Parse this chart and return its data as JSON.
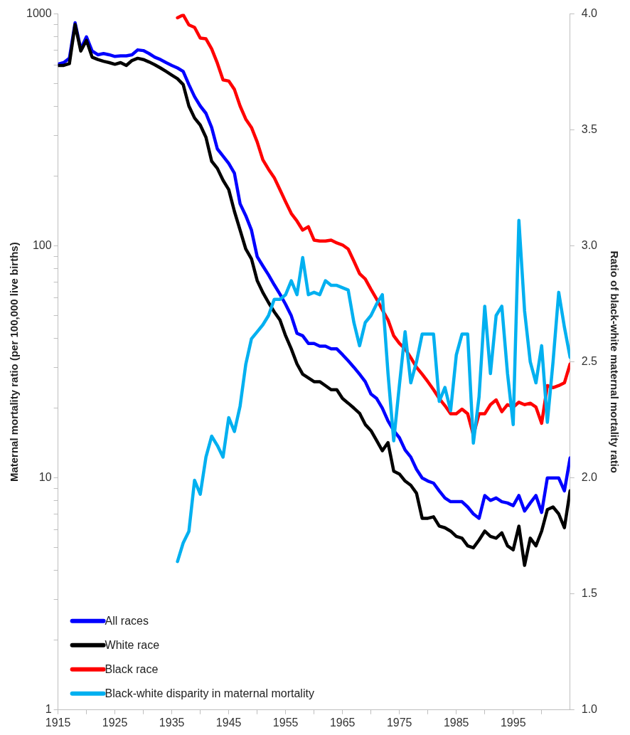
{
  "chart_data": {
    "type": "line",
    "ylabel": "Maternal mortality ratio (per 100,000 live births)",
    "y2label": "Ratio of black-white maternal mortality ratio",
    "x": [
      1915,
      1916,
      1917,
      1918,
      1919,
      1920,
      1921,
      1922,
      1923,
      1924,
      1925,
      1926,
      1927,
      1928,
      1929,
      1930,
      1931,
      1932,
      1933,
      1934,
      1935,
      1936,
      1937,
      1938,
      1939,
      1940,
      1941,
      1942,
      1943,
      1944,
      1945,
      1946,
      1947,
      1948,
      1949,
      1950,
      1951,
      1952,
      1953,
      1954,
      1955,
      1956,
      1957,
      1958,
      1959,
      1960,
      1961,
      1962,
      1963,
      1964,
      1965,
      1966,
      1967,
      1968,
      1969,
      1970,
      1971,
      1972,
      1973,
      1974,
      1975,
      1976,
      1977,
      1978,
      1979,
      1980,
      1981,
      1982,
      1983,
      1984,
      1985,
      1986,
      1987,
      1988,
      1989,
      1990,
      1991,
      1992,
      1993,
      1994,
      1995,
      1996,
      1997,
      1998,
      1999,
      2000,
      2001,
      2002,
      2003,
      2004,
      2005
    ],
    "xlim": [
      1915,
      2005
    ],
    "xticks": [
      1915,
      {
        "value": 1920,
        "label": null
      },
      1925,
      {
        "value": 1930,
        "label": null
      },
      1935,
      {
        "value": 1940,
        "label": null
      },
      1945,
      {
        "value": 1950,
        "label": null
      },
      1955,
      {
        "value": 1960,
        "label": null
      },
      1965,
      {
        "value": 1970,
        "label": null
      },
      1975,
      {
        "value": 1980,
        "label": null
      },
      1985,
      {
        "value": 1990,
        "label": null
      },
      1995,
      {
        "value": 2000,
        "label": null
      }
    ],
    "log": "y",
    "ylim": [
      1,
      1000
    ],
    "yticks": [
      1,
      {
        "value": 2,
        "label": null
      },
      {
        "value": 3,
        "label": null
      },
      {
        "value": 4,
        "label": null
      },
      {
        "value": 5,
        "label": null
      },
      {
        "value": 6,
        "label": null
      },
      {
        "value": 7,
        "label": null
      },
      {
        "value": 8,
        "label": null
      },
      {
        "value": 9,
        "label": null
      },
      10,
      {
        "value": 20,
        "label": null
      },
      {
        "value": 30,
        "label": null
      },
      {
        "value": 40,
        "label": null
      },
      {
        "value": 50,
        "label": null
      },
      {
        "value": 60,
        "label": null
      },
      {
        "value": 70,
        "label": null
      },
      {
        "value": 80,
        "label": null
      },
      {
        "value": 90,
        "label": null
      },
      100,
      {
        "value": 200,
        "label": null
      },
      {
        "value": 300,
        "label": null
      },
      {
        "value": 400,
        "label": null
      },
      {
        "value": 500,
        "label": null
      },
      {
        "value": 600,
        "label": null
      },
      {
        "value": 700,
        "label": null
      },
      {
        "value": 800,
        "label": null
      },
      {
        "value": 900,
        "label": null
      },
      1000
    ],
    "y2lim": [
      1,
      4
    ],
    "y2ticks": [
      {
        "value": 1,
        "label": "1.0"
      },
      1.5,
      {
        "value": 2,
        "label": "2.0"
      },
      2.5,
      {
        "value": 3,
        "label": "3.0"
      },
      3.5,
      {
        "value": 4,
        "label": "4.0"
      }
    ],
    "grid": false,
    "legend": "bottom left",
    "marker": "none",
    "line_style": "solid",
    "series": [
      {
        "name": "All races",
        "color": "#0000ff",
        "values": [
          607,
          617,
          644,
          916,
          706,
          797,
          692,
          667,
          675,
          667,
          656,
          660,
          660,
          667,
          700,
          695,
          675,
          651,
          636,
          617,
          600,
          585,
          565,
          496,
          440,
          401,
          373,
          324,
          262,
          244,
          227,
          206,
          152,
          135,
          117,
          90,
          82,
          75,
          68,
          62,
          56,
          50,
          42,
          41,
          38,
          38,
          37,
          37,
          36,
          36,
          34,
          32,
          30,
          28,
          26,
          23,
          22,
          20,
          17.6,
          16,
          14.9,
          13.2,
          12.3,
          10.9,
          10.0,
          9.7,
          9.5,
          8.8,
          8.2,
          7.9,
          7.9,
          7.9,
          7.5,
          7.0,
          6.7,
          8.4,
          8.0,
          8.2,
          7.9,
          7.8,
          7.6,
          8.4,
          7.2,
          7.8,
          8.4,
          7.1,
          10.0,
          10.0,
          10.0,
          8.8,
          12.2
        ]
      },
      {
        "name": "White race",
        "color": "#000000",
        "values": [
          600,
          600,
          611,
          900,
          692,
          769,
          651,
          636,
          625,
          617,
          607,
          617,
          600,
          630,
          644,
          636,
          621,
          604,
          585,
          565,
          545,
          526,
          496,
          401,
          356,
          332,
          294,
          232,
          216,
          192,
          175,
          141,
          117,
          97,
          88,
          71,
          63,
          57,
          52,
          48,
          41,
          36,
          31,
          28,
          27,
          26,
          26,
          25,
          24,
          24,
          22,
          21,
          20,
          19,
          17,
          16,
          14.5,
          13.1,
          14.2,
          10.7,
          10.4,
          9.7,
          9.3,
          8.6,
          6.7,
          6.7,
          6.8,
          6.2,
          6.1,
          5.9,
          5.6,
          5.5,
          5.1,
          5.0,
          5.4,
          5.9,
          5.6,
          5.5,
          5.8,
          5.1,
          4.9,
          6.2,
          4.2,
          5.5,
          5.1,
          5.9,
          7.3,
          7.5,
          7.0,
          6.1,
          8.8
        ]
      },
      {
        "name": "Black race",
        "color": "#ff0000",
        "values": [
          null,
          null,
          null,
          null,
          null,
          null,
          null,
          null,
          null,
          null,
          null,
          null,
          null,
          null,
          null,
          null,
          null,
          null,
          null,
          null,
          null,
          963,
          991,
          897,
          875,
          787,
          781,
          707,
          614,
          520,
          514,
          473,
          401,
          352,
          324,
          281,
          235,
          214,
          197,
          175,
          155,
          138,
          128,
          117,
          121,
          106,
          105,
          105,
          106,
          103,
          101,
          97,
          86,
          76,
          72,
          65,
          59,
          53,
          48,
          41,
          38,
          36,
          33,
          30,
          28,
          26,
          24,
          22,
          20.5,
          18.9,
          18.9,
          19.8,
          18.9,
          15.3,
          18.9,
          18.9,
          20.7,
          21.7,
          19.3,
          20.7,
          20.2,
          21.2,
          20.7,
          21,
          20.2,
          17.2,
          25,
          24.5,
          25,
          25.7,
          31
        ]
      },
      {
        "name": "Black-white disparity in maternal mortality",
        "color": "#00b0f0",
        "axis": "y2",
        "values": [
          null,
          null,
          null,
          null,
          null,
          null,
          null,
          null,
          null,
          null,
          null,
          null,
          null,
          null,
          null,
          null,
          null,
          null,
          null,
          null,
          null,
          1.64,
          1.72,
          1.77,
          1.99,
          1.93,
          2.09,
          2.18,
          2.14,
          2.09,
          2.26,
          2.2,
          2.31,
          2.49,
          2.6,
          2.63,
          2.66,
          2.7,
          2.77,
          2.77,
          2.79,
          2.85,
          2.79,
          2.95,
          2.79,
          2.8,
          2.79,
          2.85,
          2.83,
          2.83,
          2.82,
          2.81,
          2.67,
          2.57,
          2.67,
          2.7,
          2.75,
          2.79,
          2.45,
          2.16,
          2.4,
          2.63,
          2.41,
          2.5,
          2.62,
          2.62,
          2.62,
          2.33,
          2.39,
          2.29,
          2.53,
          2.62,
          2.62,
          2.15,
          2.35,
          2.74,
          2.45,
          2.7,
          2.74,
          2.45,
          2.23,
          3.11,
          2.72,
          2.5,
          2.41,
          2.57,
          2.24,
          2.5,
          2.8,
          2.65,
          2.52
        ]
      }
    ]
  }
}
